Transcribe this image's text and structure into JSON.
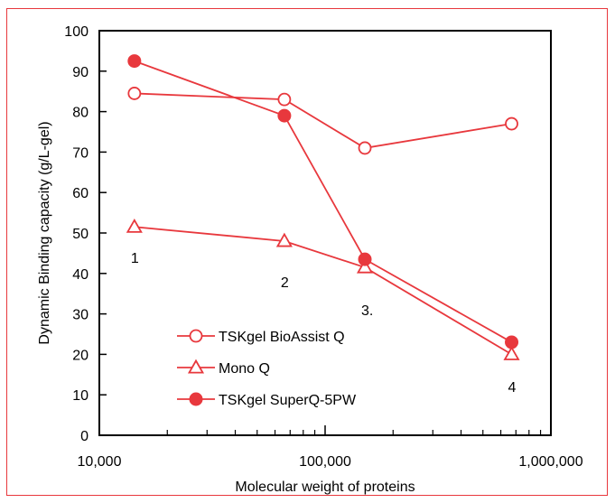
{
  "chart_data": {
    "type": "line",
    "xlabel": "Molecular weight of proteins",
    "ylabel": "Dynamic Binding capacity (g/L-gel)",
    "x_scale": "log",
    "xlim": [
      10000,
      1000000
    ],
    "ylim": [
      0,
      100
    ],
    "x_ticks": [
      10000,
      100000,
      1000000
    ],
    "x_tick_labels": [
      "10,000",
      "100,000",
      "1,000,000"
    ],
    "y_ticks": [
      0,
      10,
      20,
      30,
      40,
      50,
      60,
      70,
      80,
      90,
      100
    ],
    "y_tick_labels": [
      "0",
      "10",
      "20",
      "30",
      "40",
      "50",
      "60",
      "70",
      "80",
      "90",
      "100"
    ],
    "grid": false,
    "legend_position": "lower-left",
    "series_color": "#e8383d",
    "series": [
      {
        "name": "TSKgel BioAssist Q",
        "marker": "open-circle",
        "x": [
          14300,
          66000,
          150000,
          670000
        ],
        "y": [
          84.5,
          83,
          71,
          77
        ]
      },
      {
        "name": "Mono Q",
        "marker": "open-triangle",
        "x": [
          14300,
          66000,
          150000,
          670000
        ],
        "y": [
          51.5,
          48,
          41.5,
          20
        ]
      },
      {
        "name": "TSKgel SuperQ-5PW",
        "marker": "filled-circle",
        "x": [
          14300,
          66000,
          150000,
          670000
        ],
        "y": [
          92.5,
          79,
          43.5,
          23
        ]
      }
    ],
    "annotations": [
      {
        "text": "1",
        "x": 14300,
        "y": 44
      },
      {
        "text": "2",
        "x": 66000,
        "y": 38
      },
      {
        "text": "3.",
        "x": 150000,
        "y": 31
      },
      {
        "text": "4",
        "x": 670000,
        "y": 12
      }
    ]
  }
}
